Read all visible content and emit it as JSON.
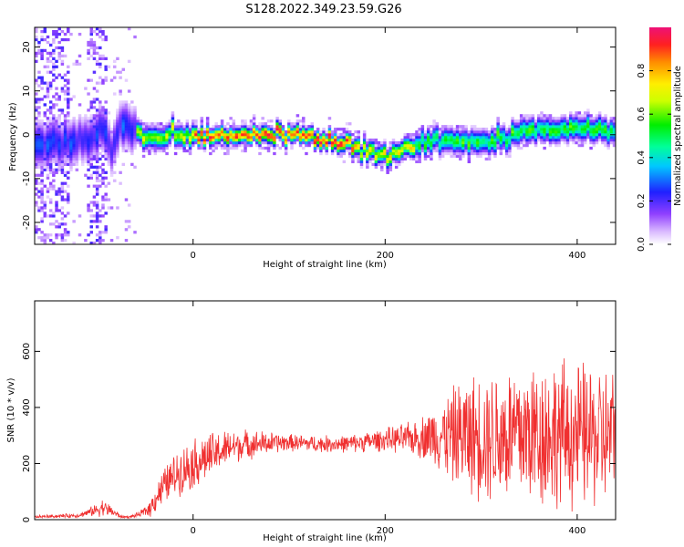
{
  "title": "S128.2022.349.23.59.G26",
  "chart_data": [
    {
      "type": "heatmap",
      "xlabel": "Height of straight line (km)",
      "ylabel": "Frequency (Hz)",
      "xlim": [
        -165,
        440
      ],
      "ylim": [
        -25,
        24.5
      ],
      "x_ticks": [
        0,
        200,
        400
      ],
      "y_ticks": [
        -20,
        -10,
        0,
        10,
        20
      ],
      "colorbar": {
        "label": "Normalized spectral amplitude",
        "range": [
          0,
          1
        ],
        "ticks": [
          0.0,
          0.2,
          0.4,
          0.6,
          0.8
        ]
      },
      "grid": false,
      "ridge_frequency": {
        "x": [
          -125,
          -105,
          -95,
          -85,
          -75,
          -65,
          -55,
          -45,
          -30,
          0,
          50,
          100,
          140,
          170,
          200,
          220,
          250,
          300,
          350,
          400,
          440
        ],
        "y": [
          -2,
          -1.5,
          2,
          -4,
          3,
          2,
          0,
          -1,
          0,
          -0.5,
          0,
          0,
          -1,
          -2.5,
          -4.5,
          -3,
          -1.5,
          -1.5,
          1,
          1.5,
          1
        ]
      }
    },
    {
      "type": "line",
      "xlabel": "Height of straight line (km)",
      "ylabel": "SNR (10 * v/v)",
      "xlim": [
        -165,
        440
      ],
      "ylim": [
        0,
        780
      ],
      "x_ticks": [
        0,
        200,
        400
      ],
      "y_ticks": [
        0,
        200,
        400,
        600
      ],
      "series_color": "#f03030",
      "grid": false,
      "envelope": {
        "x": [
          -165,
          -120,
          -110,
          -100,
          -95,
          -85,
          -75,
          -65,
          -55,
          -45,
          -35,
          -25,
          -15,
          0,
          20,
          40,
          60,
          100,
          130,
          160,
          200,
          230,
          250,
          280,
          320,
          360,
          400,
          440
        ],
        "mean": [
          10,
          15,
          25,
          35,
          45,
          30,
          10,
          10,
          20,
          40,
          100,
          140,
          170,
          200,
          230,
          260,
          270,
          275,
          270,
          270,
          285,
          290,
          300,
          300,
          300,
          310,
          300,
          290
        ],
        "spread": [
          5,
          8,
          12,
          25,
          30,
          20,
          5,
          5,
          10,
          30,
          60,
          70,
          80,
          90,
          80,
          60,
          50,
          30,
          30,
          30,
          40,
          60,
          100,
          200,
          250,
          270,
          260,
          250
        ]
      }
    }
  ],
  "colors": {
    "line": "#f03030"
  }
}
